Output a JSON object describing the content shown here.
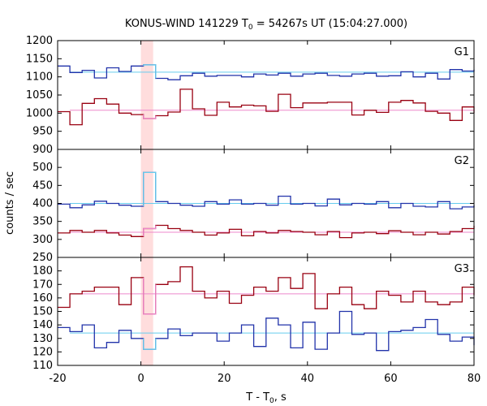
{
  "chart_data": {
    "type": "line",
    "title_prefix": "KONUS-WIND 141229 T",
    "title_sub": "0",
    "title_suffix": " = 54267s UT (15:04:27.000)",
    "xlabel_prefix": "T - T",
    "xlabel_sub": "0",
    "xlabel_suffix": ", s",
    "ylabel": "counts / sec",
    "xlim": [
      -20,
      80
    ],
    "xticks": [
      -20,
      0,
      20,
      40,
      60,
      80
    ],
    "highlight_interval": [
      0,
      2.944
    ],
    "colors": {
      "high_channel": "#2233aa",
      "low_channel": "#990011",
      "high_bg": "#66ccee",
      "low_bg": "#ee88cc",
      "highlight": "#ffdddd"
    },
    "panels": [
      {
        "label": "G1",
        "ylim": [
          900,
          1200
        ],
        "yticks": [
          900,
          950,
          1000,
          1050,
          1100,
          1150,
          1200
        ],
        "series": [
          {
            "role": "high",
            "background": 1113,
            "x": [
              -20,
              -17.06,
              -14.11,
              -11.17,
              -8.22,
              -5.28,
              -2.34,
              0.61,
              3.55,
              6.5,
              9.44,
              12.38,
              15.33,
              18.27,
              21.22,
              24.16,
              27.1,
              30.05,
              32.99,
              35.94,
              38.88,
              41.82,
              44.77,
              47.71,
              50.66,
              53.6,
              56.54,
              59.49,
              62.43,
              65.38,
              68.32,
              71.26,
              74.21,
              77.15,
              80
            ],
            "y": [
              1130,
              1112,
              1118,
              1097,
              1125,
              1115,
              1130,
              1133,
              1096,
              1092,
              1103,
              1110,
              1102,
              1104,
              1104,
              1100,
              1108,
              1105,
              1110,
              1102,
              1108,
              1110,
              1104,
              1102,
              1108,
              1110,
              1102,
              1103,
              1114,
              1100,
              1110,
              1094,
              1120,
              1116,
              1120
            ]
          },
          {
            "role": "low",
            "background": 1008,
            "x": [
              -20,
              -17.06,
              -14.11,
              -11.17,
              -8.22,
              -5.28,
              -2.34,
              0.61,
              3.55,
              6.5,
              9.44,
              12.38,
              15.33,
              18.27,
              21.22,
              24.16,
              27.1,
              30.05,
              32.99,
              35.94,
              38.88,
              41.82,
              44.77,
              47.71,
              50.66,
              53.6,
              56.54,
              59.49,
              62.43,
              65.38,
              68.32,
              71.26,
              74.21,
              77.15,
              80
            ],
            "y": [
              1004,
              968,
              1027,
              1040,
              1025,
              1000,
              996,
              985,
              993,
              1003,
              1066,
              1012,
              994,
              1030,
              1017,
              1022,
              1020,
              1005,
              1052,
              1015,
              1028,
              1028,
              1030,
              1030,
              995,
              1008,
              1002,
              1030,
              1035,
              1028,
              1005,
              1000,
              980,
              1017,
              1000
            ]
          }
        ]
      },
      {
        "label": "G2",
        "ylim": [
          250,
          550
        ],
        "yticks": [
          250,
          300,
          350,
          400,
          450,
          500
        ],
        "series": [
          {
            "role": "high",
            "background": 400,
            "x": [
              -20,
              -17.06,
              -14.11,
              -11.17,
              -8.22,
              -5.28,
              -2.34,
              0.61,
              3.55,
              6.5,
              9.44,
              12.38,
              15.33,
              18.27,
              21.22,
              24.16,
              27.1,
              30.05,
              32.99,
              35.94,
              38.88,
              41.82,
              44.77,
              47.71,
              50.66,
              53.6,
              56.54,
              59.49,
              62.43,
              65.38,
              68.32,
              71.26,
              74.21,
              77.15,
              80
            ],
            "y": [
              398,
              388,
              396,
              406,
              400,
              395,
              392,
              486,
              405,
              400,
              395,
              392,
              405,
              398,
              410,
              398,
              400,
              395,
              420,
              398,
              400,
              393,
              412,
              396,
              400,
              398,
              405,
              388,
              400,
              392,
              390,
              405,
              385,
              390,
              395
            ]
          },
          {
            "role": "low",
            "background": 320,
            "x": [
              -20,
              -17.06,
              -14.11,
              -11.17,
              -8.22,
              -5.28,
              -2.34,
              0.61,
              3.55,
              6.5,
              9.44,
              12.38,
              15.33,
              18.27,
              21.22,
              24.16,
              27.1,
              30.05,
              32.99,
              35.94,
              38.88,
              41.82,
              44.77,
              47.71,
              50.66,
              53.6,
              56.54,
              59.49,
              62.43,
              65.38,
              68.32,
              71.26,
              74.21,
              77.15,
              80
            ],
            "y": [
              318,
              325,
              320,
              325,
              318,
              312,
              308,
              330,
              339,
              330,
              325,
              320,
              312,
              318,
              328,
              310,
              322,
              318,
              325,
              322,
              320,
              313,
              322,
              305,
              318,
              320,
              316,
              324,
              320,
              313,
              320,
              315,
              322,
              330,
              338
            ]
          }
        ]
      },
      {
        "label": "G3",
        "ylim": [
          110,
          190
        ],
        "yticks": [
          110,
          120,
          130,
          140,
          150,
          160,
          170,
          180
        ],
        "series": [
          {
            "role": "high",
            "background": 134,
            "x": [
              -20,
              -17.06,
              -14.11,
              -11.17,
              -8.22,
              -5.28,
              -2.34,
              0.61,
              3.55,
              6.5,
              9.44,
              12.38,
              15.33,
              18.27,
              21.22,
              24.16,
              27.1,
              30.05,
              32.99,
              35.94,
              38.88,
              41.82,
              44.77,
              47.71,
              50.66,
              53.6,
              56.54,
              59.49,
              62.43,
              65.38,
              68.32,
              71.26,
              74.21,
              77.15,
              80
            ],
            "y": [
              138,
              135,
              140,
              123,
              127,
              136,
              130,
              122,
              130,
              137,
              132,
              134,
              134,
              128,
              134,
              140,
              124,
              145,
              140,
              123,
              142,
              122,
              134,
              150,
              133,
              134,
              121,
              135,
              136,
              138,
              144,
              133,
              128,
              131,
              125
            ]
          },
          {
            "role": "low",
            "background": 163,
            "x": [
              -20,
              -17.06,
              -14.11,
              -11.17,
              -8.22,
              -5.28,
              -2.34,
              0.61,
              3.55,
              6.5,
              9.44,
              12.38,
              15.33,
              18.27,
              21.22,
              24.16,
              27.1,
              30.05,
              32.99,
              35.94,
              38.88,
              41.82,
              44.77,
              47.71,
              50.66,
              53.6,
              56.54,
              59.49,
              62.43,
              65.38,
              68.32,
              71.26,
              74.21,
              77.15,
              80
            ],
            "y": [
              153,
              163,
              165,
              168,
              168,
              155,
              175,
              148,
              170,
              172,
              183,
              165,
              160,
              165,
              156,
              162,
              168,
              165,
              175,
              167,
              178,
              152,
              163,
              168,
              155,
              152,
              165,
              162,
              157,
              165,
              157,
              155,
              157,
              168,
              162
            ]
          }
        ]
      }
    ]
  }
}
